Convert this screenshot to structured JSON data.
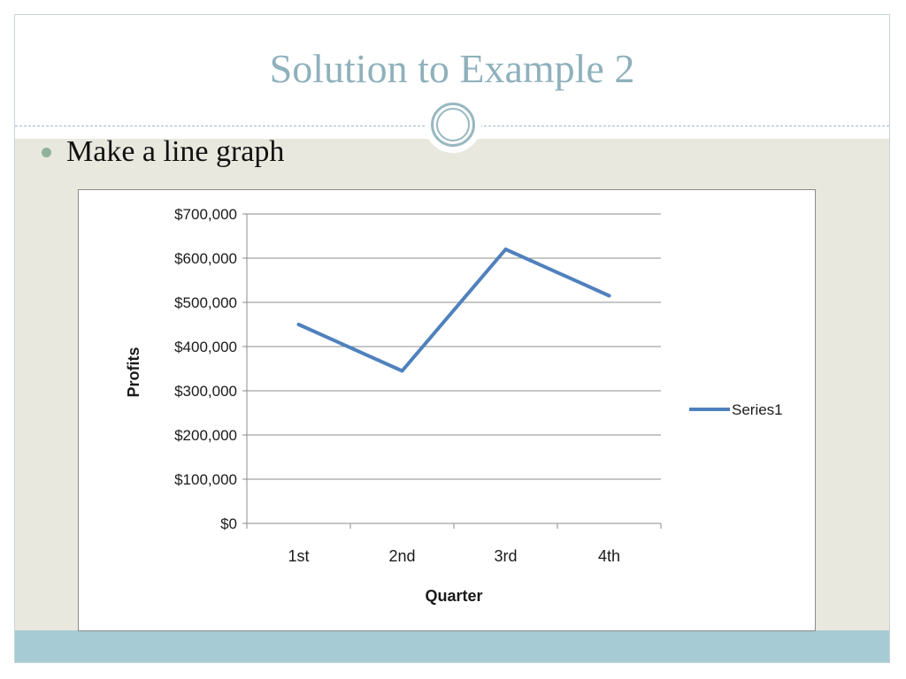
{
  "slide": {
    "title": "Solution to Example 2",
    "bullet": "Make a line graph"
  },
  "colors": {
    "title": "#8fb1bc",
    "series": "#4f81bd",
    "content_bg": "#e8e8de",
    "footer": "#a7cbd4"
  },
  "chart_data": {
    "type": "line",
    "categories": [
      "1st",
      "2nd",
      "3rd",
      "4th"
    ],
    "series": [
      {
        "name": "Series1",
        "values": [
          450000,
          345000,
          620000,
          515000
        ]
      }
    ],
    "title": "",
    "xlabel": "Quarter",
    "ylabel": "Profits",
    "ylim": [
      0,
      700000
    ],
    "yticks": [
      0,
      100000,
      200000,
      300000,
      400000,
      500000,
      600000,
      700000
    ],
    "ytick_labels": [
      "$0",
      "$100,000",
      "$200,000",
      "$300,000",
      "$400,000",
      "$500,000",
      "$600,000",
      "$700,000"
    ],
    "grid": true,
    "legend": "right"
  }
}
